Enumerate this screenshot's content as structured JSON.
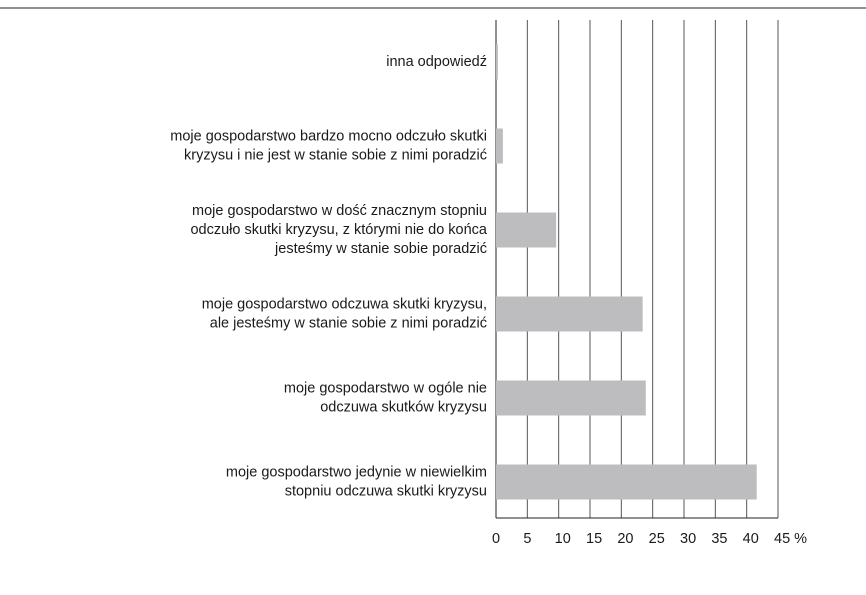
{
  "chart_data": {
    "type": "barh",
    "categories": [
      [
        "inna odpowiedź"
      ],
      [
        "moje gospodarstwo bardzo mocno odczuło skutki",
        "kryzysu i nie jest w stanie sobie z nimi poradzić"
      ],
      [
        "moje gospodarstwo w dość znacznym stopniu",
        "odczuło skutki kryzysu, z którymi nie do końca",
        "jesteśmy w stanie sobie poradzić"
      ],
      [
        "moje gospodarstwo odczuwa skutki kryzysu,",
        "ale jesteśmy w stanie sobie z nimi poradzić"
      ],
      [
        "moje gospodarstwo w ogóle nie",
        "odczuwa skutków kryzysu"
      ],
      [
        "moje gospodarstwo jedynie w niewielkim",
        "stopniu odczuwa skutki kryzysu"
      ]
    ],
    "values": [
      0.3,
      1.1,
      9.6,
      23.4,
      23.9,
      41.6
    ],
    "color": "#bdbdbf",
    "xlim": [
      0,
      45
    ],
    "xticks": [
      0,
      5,
      10,
      15,
      20,
      25,
      30,
      35,
      40,
      {
        "value": 45,
        "label": "45 %"
      }
    ],
    "grid": true
  }
}
